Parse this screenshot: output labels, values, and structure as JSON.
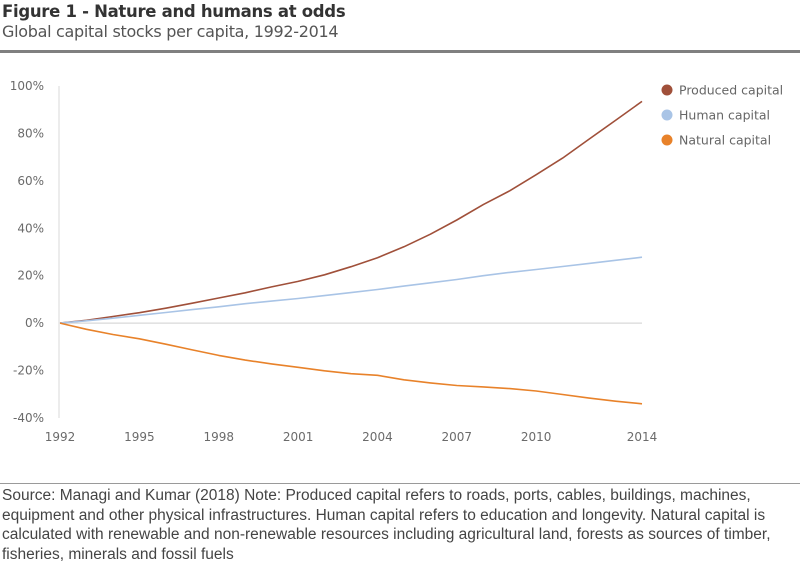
{
  "header": {
    "title": "Figure 1 - Nature and humans at odds",
    "subtitle": "Global capital stocks per capita, 1992-2014"
  },
  "footer": {
    "source": "Source: Managi and Kumar (2018) Note: Produced capital refers to roads, ports, cables, buildings, machines, equipment and other physical infrastructures. Human capital refers to education and longevity. Natural capital is calculated with renewable and non-renewable resources including agricultural land, forests as sources of timber, fisheries, minerals and fossil fuels"
  },
  "chart_data": {
    "type": "line",
    "title": "Global capital stocks per capita, 1992-2014",
    "xlabel": "",
    "ylabel": "",
    "x": [
      1992,
      1993,
      1994,
      1995,
      1996,
      1997,
      1998,
      1999,
      2000,
      2001,
      2002,
      2003,
      2004,
      2005,
      2006,
      2007,
      2008,
      2009,
      2010,
      2011,
      2012,
      2013,
      2014
    ],
    "xticks": [
      1992,
      1995,
      1998,
      2001,
      2004,
      2007,
      2010,
      2014
    ],
    "xtick_labels": [
      "1992",
      "1995",
      "1998",
      "2001",
      "2004",
      "2007",
      "2010",
      "2014"
    ],
    "xlim": [
      1992,
      2014
    ],
    "ylim": [
      -40,
      100
    ],
    "yticks": [
      -40,
      -20,
      0,
      20,
      40,
      60,
      80,
      100
    ],
    "ytick_labels": [
      "-40%",
      "-20%",
      "0%",
      "20%",
      "40%",
      "60%",
      "80%",
      "100%"
    ],
    "grid": false,
    "zero_line": true,
    "legend_position": "top-right",
    "series": [
      {
        "name": "Produced capital",
        "color": "#a0503a",
        "values": [
          0,
          1.2,
          2.8,
          4.4,
          6.3,
          8.4,
          10.6,
          12.8,
          15.3,
          17.6,
          20.4,
          23.8,
          27.6,
          32.2,
          37.5,
          43.5,
          50.0,
          55.8,
          62.6,
          69.6,
          77.6,
          85.5,
          93.5
        ]
      },
      {
        "name": "Human capital",
        "color": "#a9c4e6",
        "values": [
          0,
          1.0,
          2.1,
          3.3,
          4.5,
          5.7,
          6.9,
          8.2,
          9.3,
          10.4,
          11.6,
          12.9,
          14.2,
          15.6,
          17.0,
          18.4,
          20.0,
          21.4,
          22.6,
          23.9,
          25.2,
          26.5,
          27.8
        ]
      },
      {
        "name": "Natural capital",
        "color": "#e8822a",
        "values": [
          0,
          -2.6,
          -4.8,
          -6.6,
          -8.9,
          -11.3,
          -13.6,
          -15.6,
          -17.2,
          -18.6,
          -20.1,
          -21.3,
          -22.0,
          -23.9,
          -25.2,
          -26.3,
          -26.9,
          -27.6,
          -28.6,
          -30.1,
          -31.6,
          -32.9,
          -34.0
        ]
      }
    ]
  }
}
